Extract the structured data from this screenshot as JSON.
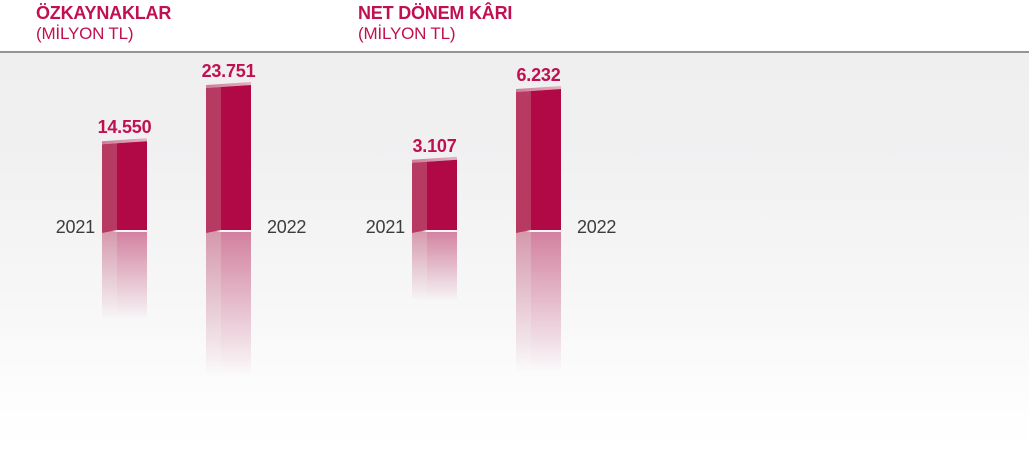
{
  "accent_color": "#c01051",
  "year_label_color": "#3c3c3c",
  "divider_color": "#949494",
  "plot_background_top": "#efeff0",
  "plot_background_bottom": "#ffffff",
  "bar_colors": {
    "front": "#b00945",
    "side": "#b63a61",
    "top_left": "#cc7e99",
    "top_right": "#e2b3c2"
  },
  "chart_data": [
    {
      "type": "bar",
      "title": "ÖZKAYNAKLAR",
      "subtitle": "(MİLYON TL)",
      "unit": "MİLYON TL",
      "categories": [
        "2021",
        "2022"
      ],
      "values": [
        14550,
        23751
      ],
      "value_labels": [
        "14.550",
        "23.751"
      ],
      "style": "3d-column-with-reflection",
      "grid": false,
      "legend": false,
      "ylim": [
        0,
        23751
      ]
    },
    {
      "type": "bar",
      "title": "NET DÖNEM KÂRI",
      "subtitle": "(MİLYON TL)",
      "unit": "MİLYON TL",
      "categories": [
        "2021",
        "2022"
      ],
      "values": [
        3107,
        6232
      ],
      "value_labels": [
        "3.107",
        "6.232"
      ],
      "style": "3d-column-with-reflection",
      "grid": false,
      "legend": false,
      "ylim": [
        0,
        6232
      ]
    }
  ]
}
